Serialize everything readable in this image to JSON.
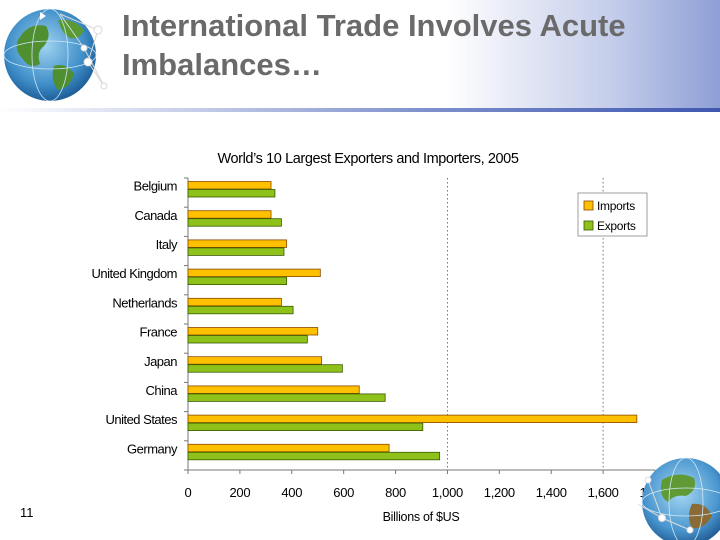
{
  "slide": {
    "title": "International Trade Involves Acute Imbalances…",
    "number": "11"
  },
  "icons": [
    "globe-icon",
    "globe-icon"
  ],
  "colors": {
    "imports": "#ffc000",
    "exports": "#8ec21a",
    "bar_border": "#8a4a00",
    "title_text": "#6a6a6a"
  },
  "chart_data": {
    "type": "bar",
    "orientation": "horizontal",
    "title": "World’s 10 Largest Exporters and Importers, 2005",
    "xlabel": "Billions of $US",
    "ylabel": "",
    "xlim": [
      0,
      1800
    ],
    "x_ticks": [
      "0",
      "200",
      "400",
      "600",
      "800",
      "1,000",
      "1,200",
      "1,400",
      "1,600",
      "1,800"
    ],
    "categories": [
      "Belgium",
      "Canada",
      "Italy",
      "United Kingdom",
      "Netherlands",
      "France",
      "Japan",
      "China",
      "United States",
      "Germany"
    ],
    "series": [
      {
        "name": "Imports",
        "values": [
          320,
          320,
          380,
          510,
          360,
          500,
          515,
          660,
          1730,
          775
        ]
      },
      {
        "name": "Exports",
        "values": [
          335,
          360,
          370,
          380,
          405,
          460,
          595,
          760,
          905,
          970
        ]
      }
    ],
    "gridlines": "vertical dotted at 1,000 and 1,600",
    "legend_position": "right"
  }
}
